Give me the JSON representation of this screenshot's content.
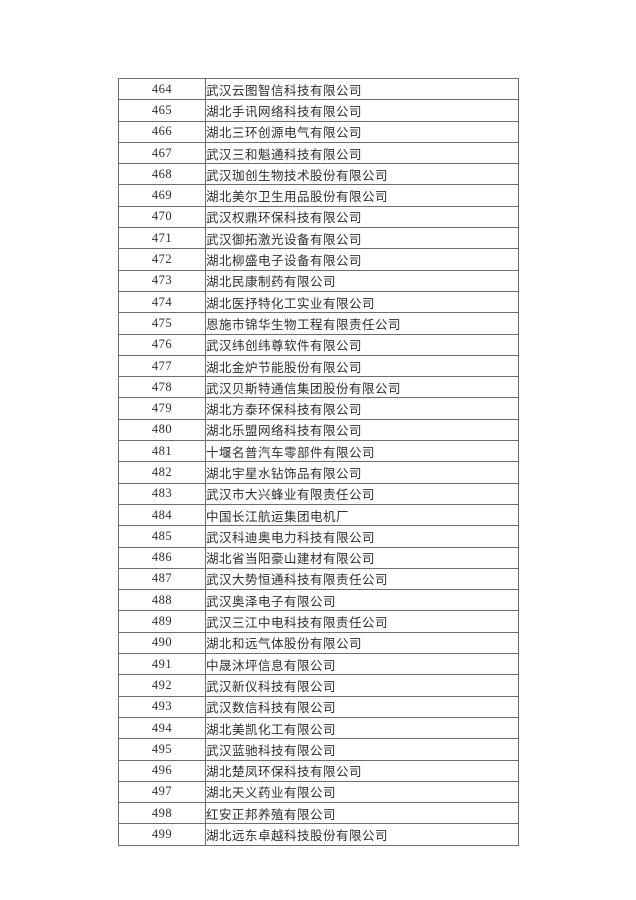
{
  "page": {
    "background_color": "#ffffff",
    "border_color": "#6e6e6e",
    "text_color": "#2e2e2e"
  },
  "table": {
    "rows": [
      {
        "no": "464",
        "name": "武汉云图智信科技有限公司"
      },
      {
        "no": "465",
        "name": "湖北手讯网络科技有限公司"
      },
      {
        "no": "466",
        "name": "湖北三环创源电气有限公司"
      },
      {
        "no": "467",
        "name": "武汉三和魁通科技有限公司"
      },
      {
        "no": "468",
        "name": "武汉珈创生物技术股份有限公司"
      },
      {
        "no": "469",
        "name": "湖北美尔卫生用品股份有限公司"
      },
      {
        "no": "470",
        "name": "武汉权鼎环保科技有限公司"
      },
      {
        "no": "471",
        "name": "武汉御拓激光设备有限公司"
      },
      {
        "no": "472",
        "name": "湖北柳盛电子设备有限公司"
      },
      {
        "no": "473",
        "name": "湖北民康制药有限公司"
      },
      {
        "no": "474",
        "name": "湖北医抒特化工实业有限公司"
      },
      {
        "no": "475",
        "name": "恩施市锦华生物工程有限责任公司"
      },
      {
        "no": "476",
        "name": "武汉纬创纬尊软件有限公司"
      },
      {
        "no": "477",
        "name": "湖北金炉节能股份有限公司"
      },
      {
        "no": "478",
        "name": "武汉贝斯特通信集团股份有限公司"
      },
      {
        "no": "479",
        "name": "湖北方泰环保科技有限公司"
      },
      {
        "no": "480",
        "name": "湖北乐盟网络科技有限公司"
      },
      {
        "no": "481",
        "name": "十堰名普汽车零部件有限公司"
      },
      {
        "no": "482",
        "name": "湖北宇星水钻饰品有限公司"
      },
      {
        "no": "483",
        "name": "武汉市大兴蜂业有限责任公司"
      },
      {
        "no": "484",
        "name": "中国长江航运集团电机厂"
      },
      {
        "no": "485",
        "name": "武汉科迪奥电力科技有限公司"
      },
      {
        "no": "486",
        "name": "湖北省当阳豪山建材有限公司"
      },
      {
        "no": "487",
        "name": "武汉大势恒通科技有限责任公司"
      },
      {
        "no": "488",
        "name": "武汉奥泽电子有限公司"
      },
      {
        "no": "489",
        "name": "武汉三江中电科技有限责任公司"
      },
      {
        "no": "490",
        "name": "湖北和远气体股份有限公司"
      },
      {
        "no": "491",
        "name": "中晟沐坪信息有限公司"
      },
      {
        "no": "492",
        "name": "武汉新仪科技有限公司"
      },
      {
        "no": "493",
        "name": "武汉数信科技有限公司"
      },
      {
        "no": "494",
        "name": "湖北美凯化工有限公司"
      },
      {
        "no": "495",
        "name": "武汉蓝驰科技有限公司"
      },
      {
        "no": "496",
        "name": "湖北楚凤环保科技有限公司"
      },
      {
        "no": "497",
        "name": "湖北天义药业有限公司"
      },
      {
        "no": "498",
        "name": "红安正邦养殖有限公司"
      },
      {
        "no": "499",
        "name": "湖北远东卓越科技股份有限公司"
      }
    ]
  }
}
